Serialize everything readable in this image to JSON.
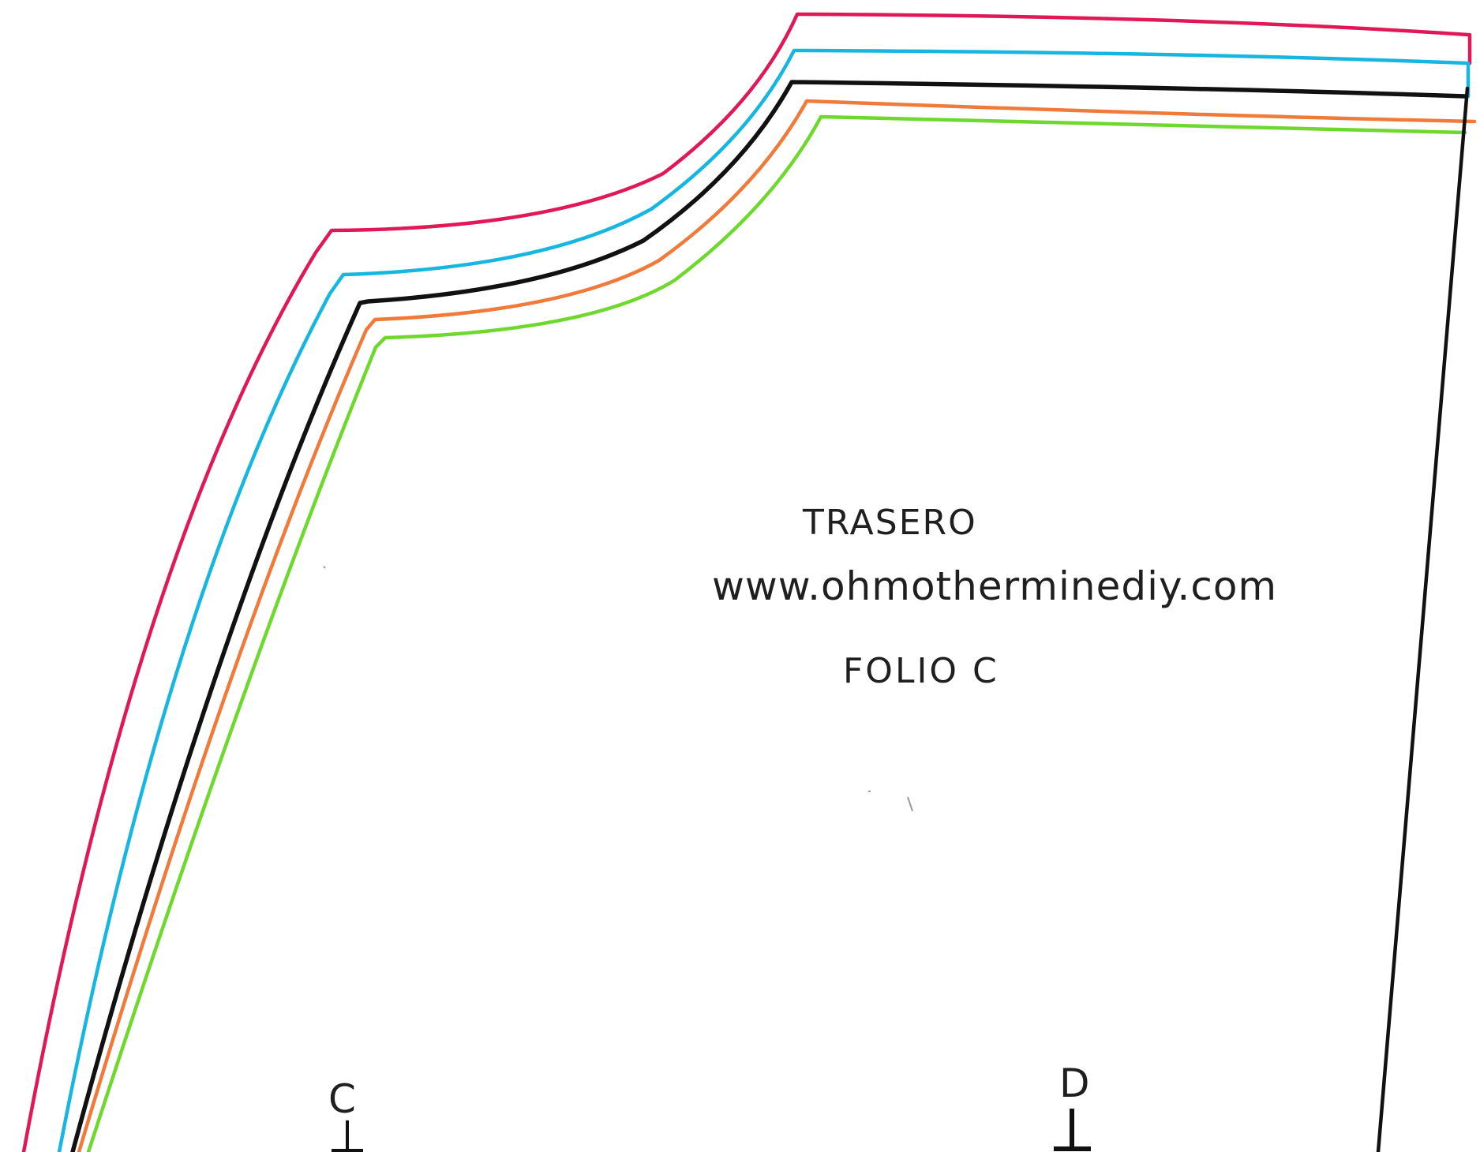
{
  "pattern": {
    "piece_name": "TRASERO",
    "website": "www.ohmotherminediy.com",
    "folio": "FOLIO C",
    "marks": [
      {
        "label": "C"
      },
      {
        "label": "D"
      }
    ]
  },
  "size_lines": [
    {
      "color": "#e01856"
    },
    {
      "color": "#16b6e0"
    },
    {
      "color": "#111111"
    },
    {
      "color": "#f07a3a"
    },
    {
      "color": "#6fd82f"
    }
  ]
}
